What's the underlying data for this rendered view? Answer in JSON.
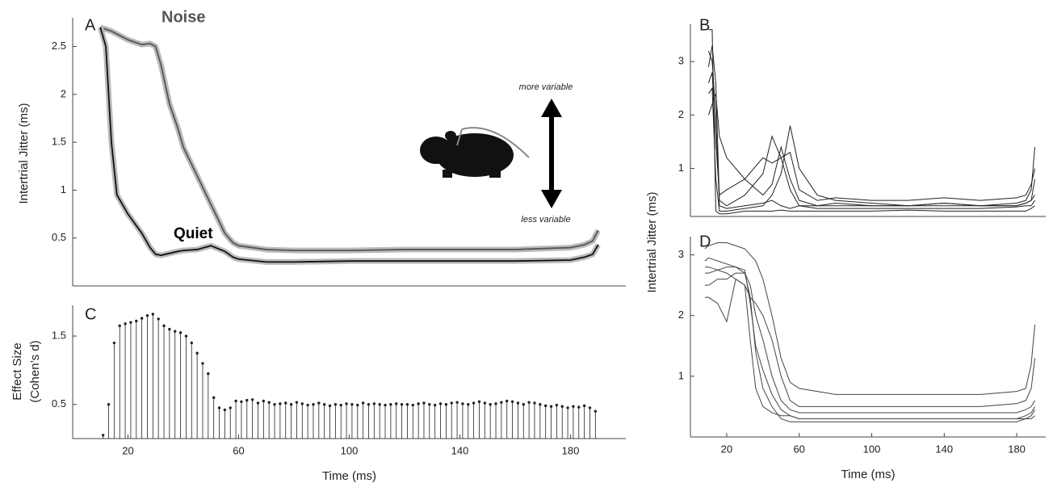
{
  "chart_data": [
    {
      "type": "line",
      "panel_label": "A",
      "ylabel": "Intertrial Jitter (ms)",
      "annotations": [
        "Noise",
        "Quiet",
        "more variable",
        "less variable"
      ],
      "xlim": [
        0,
        200
      ],
      "ylim": [
        0,
        2.8
      ],
      "yticks": [
        0.5,
        1,
        1.5,
        2,
        2.5
      ],
      "x": [
        10,
        12,
        14,
        16,
        18,
        20,
        25,
        28,
        30,
        32,
        35,
        38,
        40,
        45,
        50,
        55,
        58,
        60,
        70,
        80,
        100,
        120,
        140,
        160,
        180,
        185,
        188,
        190
      ],
      "series": [
        {
          "color": "#555555",
          "values": [
            2.7,
            2.68,
            2.66,
            2.63,
            2.6,
            2.57,
            2.52,
            2.53,
            2.5,
            2.3,
            1.9,
            1.65,
            1.45,
            1.15,
            0.85,
            0.55,
            0.45,
            0.42,
            0.38,
            0.37,
            0.37,
            0.38,
            0.38,
            0.38,
            0.4,
            0.43,
            0.47,
            0.58
          ]
        },
        {
          "color": "#111111",
          "values": [
            2.7,
            2.5,
            1.5,
            0.95,
            0.85,
            0.75,
            0.55,
            0.4,
            0.33,
            0.32,
            0.34,
            0.36,
            0.37,
            0.38,
            0.42,
            0.36,
            0.3,
            0.28,
            0.25,
            0.25,
            0.26,
            0.26,
            0.26,
            0.26,
            0.27,
            0.3,
            0.33,
            0.43
          ]
        }
      ]
    },
    {
      "type": "line",
      "panel_label": "B",
      "ylabel": "Intertrial Jitter (ms)",
      "xlim": [
        0,
        196
      ],
      "ylim": [
        0.1,
        3.7
      ],
      "yticks": [
        1,
        2,
        3
      ],
      "x": [
        10,
        12,
        14,
        16,
        20,
        30,
        40,
        45,
        50,
        55,
        60,
        70,
        80,
        100,
        120,
        140,
        160,
        180,
        185,
        188,
        190
      ],
      "series": [
        {
          "color": "#222222",
          "values": [
            3.2,
            3.0,
            2.0,
            0.3,
            0.25,
            0.3,
            0.35,
            0.4,
            0.3,
            0.25,
            0.3,
            0.3,
            0.35,
            0.3,
            0.3,
            0.35,
            0.3,
            0.35,
            0.4,
            0.6,
            1.4
          ]
        },
        {
          "color": "#222222",
          "values": [
            2.6,
            2.8,
            1.5,
            0.5,
            0.6,
            0.8,
            1.2,
            1.1,
            1.2,
            1.3,
            0.6,
            0.4,
            0.45,
            0.4,
            0.4,
            0.45,
            0.4,
            0.45,
            0.5,
            0.7,
            1.0
          ]
        },
        {
          "color": "#222222",
          "values": [
            2.4,
            2.5,
            0.8,
            0.2,
            0.2,
            0.25,
            0.3,
            0.5,
            0.9,
            1.8,
            1.0,
            0.5,
            0.4,
            0.35,
            0.3,
            0.35,
            0.3,
            0.3,
            0.35,
            0.4,
            0.5
          ]
        },
        {
          "color": "#222222",
          "values": [
            3.6,
            3.6,
            0.2,
            0.15,
            0.15,
            0.2,
            0.2,
            0.2,
            0.22,
            0.2,
            0.2,
            0.2,
            0.2,
            0.2,
            0.22,
            0.2,
            0.2,
            0.2,
            0.2,
            0.25,
            0.3
          ]
        },
        {
          "color": "#222222",
          "values": [
            2.0,
            2.2,
            2.4,
            1.6,
            1.2,
            0.8,
            0.5,
            0.7,
            1.4,
            0.8,
            0.4,
            0.3,
            0.3,
            0.3,
            0.3,
            0.3,
            0.3,
            0.3,
            0.35,
            0.4,
            0.8
          ]
        },
        {
          "color": "#222222",
          "values": [
            2.9,
            3.3,
            2.6,
            0.4,
            0.3,
            0.5,
            0.9,
            1.6,
            1.2,
            0.6,
            0.3,
            0.25,
            0.25,
            0.25,
            0.25,
            0.25,
            0.25,
            0.28,
            0.3,
            0.3,
            0.4
          ]
        }
      ]
    },
    {
      "type": "stem",
      "panel_label": "C",
      "ylabel": [
        "Effect Size",
        "(Cohen’s d)"
      ],
      "xlabel": "Time (ms)",
      "xlim": [
        0,
        200
      ],
      "ylim": [
        0,
        1.95
      ],
      "yticks": [
        0.5,
        1.5
      ],
      "xticks": [
        20,
        60,
        100,
        140,
        180
      ],
      "color": "#222222",
      "x": [
        11,
        13,
        15,
        17,
        19,
        21,
        23,
        25,
        27,
        29,
        31,
        33,
        35,
        37,
        39,
        41,
        43,
        45,
        47,
        49,
        51,
        53,
        55,
        57,
        59,
        61,
        63,
        65,
        67,
        69,
        71,
        73,
        75,
        77,
        79,
        81,
        83,
        85,
        87,
        89,
        91,
        93,
        95,
        97,
        99,
        101,
        103,
        105,
        107,
        109,
        111,
        113,
        115,
        117,
        119,
        121,
        123,
        125,
        127,
        129,
        131,
        133,
        135,
        137,
        139,
        141,
        143,
        145,
        147,
        149,
        151,
        153,
        155,
        157,
        159,
        161,
        163,
        165,
        167,
        169,
        171,
        173,
        175,
        177,
        179,
        181,
        183,
        185,
        187,
        189
      ],
      "values": [
        0.05,
        0.5,
        1.4,
        1.65,
        1.68,
        1.7,
        1.72,
        1.76,
        1.8,
        1.82,
        1.75,
        1.65,
        1.6,
        1.57,
        1.55,
        1.5,
        1.4,
        1.25,
        1.1,
        0.95,
        0.6,
        0.45,
        0.42,
        0.45,
        0.55,
        0.54,
        0.56,
        0.57,
        0.52,
        0.55,
        0.53,
        0.5,
        0.51,
        0.52,
        0.5,
        0.53,
        0.51,
        0.49,
        0.5,
        0.52,
        0.5,
        0.48,
        0.5,
        0.49,
        0.51,
        0.5,
        0.49,
        0.52,
        0.5,
        0.51,
        0.5,
        0.49,
        0.5,
        0.51,
        0.5,
        0.5,
        0.49,
        0.51,
        0.52,
        0.5,
        0.49,
        0.51,
        0.5,
        0.52,
        0.53,
        0.51,
        0.5,
        0.52,
        0.54,
        0.52,
        0.5,
        0.51,
        0.53,
        0.55,
        0.54,
        0.52,
        0.5,
        0.53,
        0.52,
        0.5,
        0.48,
        0.47,
        0.49,
        0.47,
        0.45,
        0.47,
        0.46,
        0.48,
        0.45,
        0.4
      ]
    },
    {
      "type": "line",
      "panel_label": "D",
      "xlabel": "Time (ms)",
      "xlim": [
        0,
        196
      ],
      "ylim": [
        0,
        3.3
      ],
      "yticks": [
        1,
        2,
        3
      ],
      "xticks": [
        20,
        60,
        100,
        140,
        180
      ],
      "x": [
        8,
        10,
        15,
        20,
        25,
        30,
        33,
        36,
        40,
        45,
        50,
        55,
        60,
        70,
        80,
        100,
        120,
        140,
        160,
        180,
        185,
        188,
        190
      ],
      "series": [
        {
          "color": "#444444",
          "values": [
            3.1,
            3.15,
            3.2,
            3.2,
            3.15,
            3.1,
            3.0,
            2.9,
            2.6,
            2.0,
            1.3,
            0.9,
            0.8,
            0.75,
            0.7,
            0.7,
            0.7,
            0.7,
            0.7,
            0.75,
            0.8,
            1.2,
            1.85
          ]
        },
        {
          "color": "#444444",
          "values": [
            2.8,
            2.8,
            2.75,
            2.7,
            2.6,
            2.5,
            1.6,
            0.8,
            0.5,
            0.4,
            0.35,
            0.35,
            0.3,
            0.3,
            0.3,
            0.3,
            0.3,
            0.3,
            0.3,
            0.3,
            0.35,
            0.4,
            0.5
          ]
        },
        {
          "color": "#444444",
          "values": [
            2.5,
            2.5,
            2.6,
            2.6,
            2.7,
            2.7,
            2.5,
            2.0,
            1.6,
            1.0,
            0.6,
            0.45,
            0.4,
            0.4,
            0.4,
            0.4,
            0.4,
            0.4,
            0.4,
            0.4,
            0.45,
            0.5,
            0.6
          ]
        },
        {
          "color": "#444444",
          "values": [
            2.9,
            2.95,
            2.9,
            2.85,
            2.8,
            2.7,
            2.3,
            1.4,
            0.8,
            0.5,
            0.3,
            0.25,
            0.25,
            0.25,
            0.25,
            0.25,
            0.25,
            0.25,
            0.25,
            0.25,
            0.3,
            0.3,
            0.35
          ]
        },
        {
          "color": "#444444",
          "values": [
            2.3,
            2.3,
            2.2,
            1.9,
            2.6,
            2.5,
            2.3,
            2.2,
            2.0,
            1.6,
            1.0,
            0.6,
            0.5,
            0.5,
            0.5,
            0.5,
            0.5,
            0.5,
            0.5,
            0.55,
            0.6,
            0.8,
            1.3
          ]
        },
        {
          "color": "#444444",
          "values": [
            2.7,
            2.7,
            2.75,
            2.8,
            2.8,
            2.75,
            2.2,
            1.5,
            1.1,
            0.7,
            0.45,
            0.35,
            0.3,
            0.3,
            0.3,
            0.3,
            0.3,
            0.3,
            0.3,
            0.3,
            0.3,
            0.35,
            0.45
          ]
        }
      ]
    }
  ]
}
